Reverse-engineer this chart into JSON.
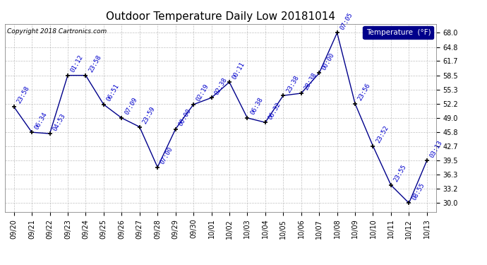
{
  "title": "Outdoor Temperature Daily Low 20181014",
  "copyright": "Copyright 2018 Cartronics.com",
  "legend_label": "Temperature  (°F)",
  "dates": [
    "09/20",
    "09/21",
    "09/22",
    "09/23",
    "09/24",
    "09/25",
    "09/26",
    "09/27",
    "09/28",
    "09/29",
    "09/30",
    "10/01",
    "10/02",
    "10/03",
    "10/04",
    "10/05",
    "10/06",
    "10/07",
    "10/08",
    "10/09",
    "10/10",
    "10/11",
    "10/12",
    "10/13"
  ],
  "values": [
    51.5,
    45.8,
    45.5,
    58.5,
    58.5,
    52.0,
    49.0,
    47.0,
    38.0,
    46.5,
    52.0,
    53.5,
    57.0,
    49.0,
    48.0,
    54.0,
    54.5,
    59.0,
    68.0,
    52.2,
    42.7,
    34.0,
    30.0,
    39.5
  ],
  "time_labels": [
    "23:58",
    "06:34",
    "04:53",
    "01:12",
    "23:58",
    "06:51",
    "07:09",
    "23:59",
    "07:00",
    "00:00",
    "02:19",
    "02:38",
    "00:11",
    "06:38",
    "06:32",
    "23:38",
    "28:38",
    "00:00",
    "07:05",
    "23:56",
    "23:52",
    "23:55",
    "08:55",
    "03:13"
  ],
  "ylim": [
    28.0,
    70.0
  ],
  "yticks": [
    30.0,
    33.2,
    36.3,
    39.5,
    42.7,
    45.8,
    49.0,
    52.2,
    55.3,
    58.5,
    61.7,
    64.8,
    68.0
  ],
  "line_color": "#00008B",
  "marker_color": "#000000",
  "label_color": "#0000CC",
  "bg_color": "#ffffff",
  "plot_bg": "#ffffff",
  "grid_color": "#b0b0b0",
  "title_fontsize": 11,
  "axis_fontsize": 7,
  "time_label_fontsize": 6.5
}
